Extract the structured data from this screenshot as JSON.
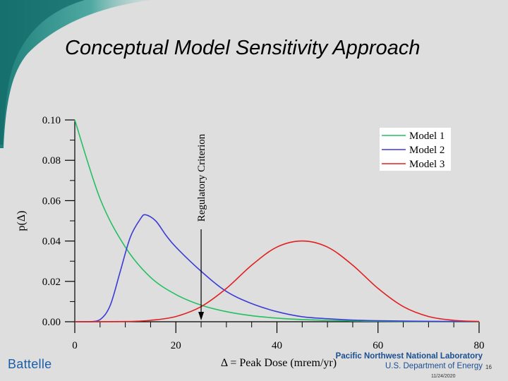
{
  "slide": {
    "title": "Conceptual Model Sensitivity Approach",
    "footer_left": "Battelle",
    "footer_org": "Pacific Northwest National Laboratory",
    "footer_dept": "U.S. Department of Energy",
    "page_number": "16",
    "date": "11/24/2020"
  },
  "chart_data": {
    "type": "line",
    "title": "",
    "xlabel": "Δ = Peak Dose (mrem/yr)",
    "ylabel": "p(Δ)",
    "xlim": [
      0,
      80
    ],
    "ylim": [
      0,
      0.1
    ],
    "x_ticks": [
      0,
      20,
      40,
      60,
      80
    ],
    "x_tick_labels": [
      "0",
      "20",
      "40",
      "60",
      "80"
    ],
    "y_ticks": [
      0,
      0.02,
      0.04,
      0.06,
      0.08,
      0.1
    ],
    "y_tick_labels": [
      "0.00",
      "0.02",
      "0.04",
      "0.06",
      "0.08",
      "0.10"
    ],
    "legend_position": "top-right",
    "series": [
      {
        "name": "Model 1",
        "color": "#22c060",
        "x": [
          0,
          5,
          10,
          15,
          20,
          25,
          30,
          35,
          40,
          45,
          50,
          55,
          60,
          65,
          70,
          75,
          80
        ],
        "values": [
          0.1,
          0.061,
          0.037,
          0.022,
          0.0135,
          0.0082,
          0.005,
          0.003,
          0.0018,
          0.0011,
          0.0007,
          0.0004,
          0.00025,
          0.00015,
          0.0001,
          5e-05,
          3e-05
        ]
      },
      {
        "name": "Model 2",
        "color": "#3c3cd6",
        "x": [
          0,
          3,
          5,
          7,
          9,
          11,
          13,
          14,
          16,
          18,
          20,
          25,
          30,
          35,
          40,
          45,
          50,
          55,
          60,
          70,
          80
        ],
        "values": [
          0,
          0,
          0.001,
          0.008,
          0.025,
          0.042,
          0.051,
          0.053,
          0.05,
          0.043,
          0.037,
          0.025,
          0.015,
          0.009,
          0.005,
          0.0025,
          0.0015,
          0.0008,
          0.0005,
          0.0002,
          0.0001
        ]
      },
      {
        "name": "Model 3",
        "color": "#e02020",
        "x": [
          0,
          10,
          15,
          20,
          25,
          30,
          35,
          40,
          45,
          50,
          55,
          60,
          65,
          70,
          75,
          80
        ],
        "values": [
          0,
          0.0001,
          0.0007,
          0.0026,
          0.0075,
          0.0165,
          0.028,
          0.037,
          0.04,
          0.037,
          0.028,
          0.0165,
          0.0075,
          0.0026,
          0.0007,
          0.0001
        ]
      }
    ],
    "annotations": [
      {
        "text": "Regulatory Criterion",
        "x": 25,
        "type": "downward-arrow"
      }
    ]
  }
}
